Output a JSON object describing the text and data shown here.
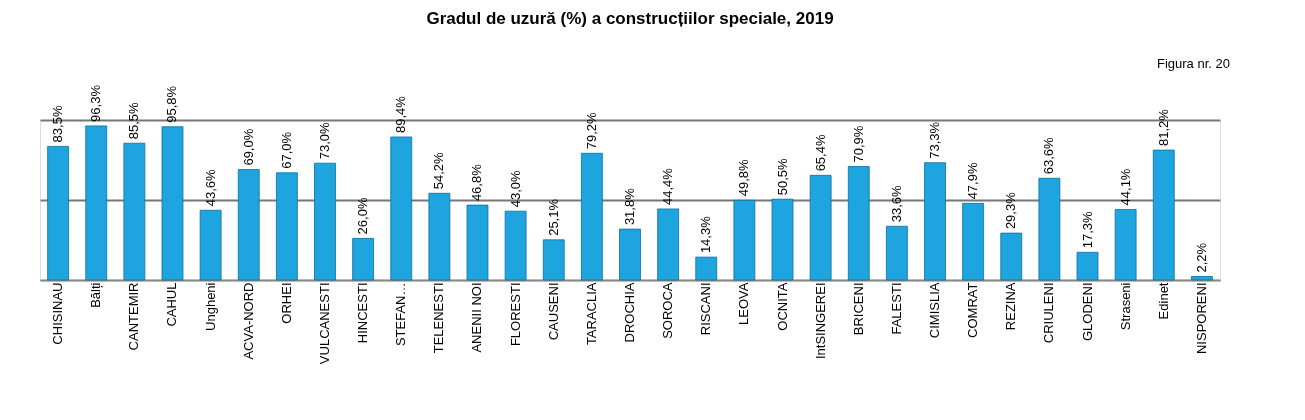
{
  "chart_data": {
    "type": "bar",
    "title": "Gradul de uzură (%) a construcțiilor speciale, 2019",
    "categories": [
      "CHISINAU",
      "Bălți",
      "CANTEMIR",
      "CAHUL",
      "Ungheni",
      "ACVA-NORD",
      "ORHEI",
      "VULCANESTI",
      "HINCESTI",
      "STEFAN…",
      "TELENESTI",
      "ANENII NOI",
      "FLORESTI",
      "CAUSENI",
      "TARACLIA",
      "DROCHIA",
      "SOROCA",
      "RISCANI",
      "LEOVA",
      "OCNITA",
      "IntSINGEREI",
      "BRICENI",
      "FALESTI",
      "CIMISLIA",
      "COMRAT",
      "REZINA",
      "CRIULENI",
      "GLODENI",
      "Straseni",
      "Edinet",
      "NISPORENI"
    ],
    "values": [
      83.5,
      96.3,
      85.5,
      95.8,
      43.6,
      69.0,
      67.0,
      73.0,
      26.0,
      89.4,
      54.2,
      46.8,
      43.0,
      25.1,
      79.2,
      31.8,
      44.4,
      14.3,
      49.8,
      50.5,
      65.4,
      70.9,
      33.6,
      73.3,
      47.9,
      29.3,
      63.6,
      17.3,
      44.1,
      81.2,
      2.2
    ],
    "value_labels": [
      "83,5%",
      "96,3%",
      "85,5%",
      "95,8%",
      "43,6%",
      "69,0%",
      "67,0%",
      "73,0%",
      "26,0%",
      "89,4%",
      "54,2%",
      "46,8%",
      "43,0%",
      "25,1%",
      "79,2%",
      "31,8%",
      "44,4%",
      "14,3%",
      "49,8%",
      "50,5%",
      "65,4%",
      "70,9%",
      "33,6%",
      "73,3%",
      "47,9%",
      "29,3%",
      "63,6%",
      "17,3%",
      "44,1%",
      "81,2%",
      "2,2%"
    ],
    "annotations": [
      "Figura nr. 20"
    ],
    "color": "#1ea5e0",
    "ylim": [
      0,
      100
    ],
    "yticks": [
      {
        "value": 0,
        "label": null
      },
      {
        "value": 50,
        "label": null
      },
      {
        "value": 100,
        "label": null
      }
    ],
    "grid": "y",
    "tick_labels": "x"
  }
}
